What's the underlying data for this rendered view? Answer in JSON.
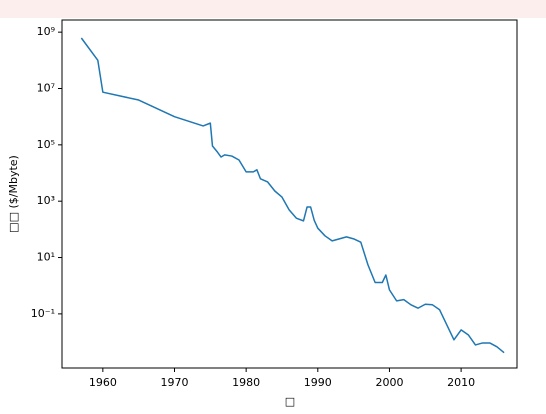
{
  "chart_data": {
    "type": "line",
    "ylabel": "□□ ($/Mbyte)",
    "xlabel": "□",
    "x": [
      1957,
      1959.3,
      1960,
      1965,
      1970,
      1974,
      1975,
      1975.3,
      1976,
      1976.5,
      1977,
      1978,
      1979,
      1980,
      1981,
      1981.5,
      1982,
      1983,
      1984,
      1985,
      1986,
      1987,
      1988,
      1988.5,
      1989,
      1989.5,
      1990,
      1991,
      1992,
      1993,
      1994,
      1995,
      1996,
      1997,
      1998,
      1999,
      1999.5,
      2000,
      2001,
      2002,
      2003,
      2004,
      2005,
      2006,
      2007,
      2008,
      2009,
      2010,
      2011,
      2012,
      2013,
      2014,
      2015,
      2016
    ],
    "series": [
      {
        "color": "#1f77b4",
        "values": [
          620000000,
          100000000,
          7400000,
          3900000,
          1000000,
          470000,
          590000,
          91000,
          55000,
          37000,
          44000,
          40000,
          29000,
          11000,
          11000,
          13000,
          6200,
          4800,
          2300,
          1400,
          490,
          250,
          200,
          620,
          620,
          210,
          110,
          59,
          39,
          46,
          54,
          46,
          35,
          5.5,
          1.3,
          1.3,
          2.4,
          0.71,
          0.29,
          0.32,
          0.21,
          0.16,
          0.22,
          0.21,
          0.14,
          0.041,
          0.012,
          0.027,
          0.018,
          0.0079,
          0.0093,
          0.0093,
          0.0068,
          0.0042
        ]
      }
    ],
    "xlim": [
      1954.3,
      2017.8
    ],
    "xticks": [
      1960,
      1970,
      1980,
      1990,
      2000,
      2010
    ],
    "ylim": [
      0.0012,
      2700000000
    ],
    "log_y": true,
    "yticks": [
      {
        "value": 0.1,
        "label": "10⁻¹"
      },
      {
        "value": 10,
        "label": "10¹"
      },
      {
        "value": 1000,
        "label": "10³"
      },
      {
        "value": 100000,
        "label": "10⁵"
      },
      {
        "value": 10000000,
        "label": "10⁷"
      },
      {
        "value": 1000000000,
        "label": "10⁹"
      }
    ]
  }
}
